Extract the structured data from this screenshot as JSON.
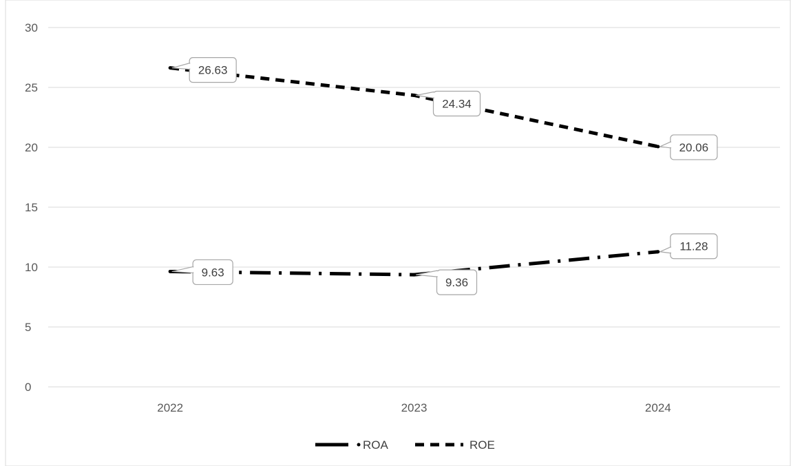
{
  "chart_data": {
    "type": "line",
    "categories": [
      "2022",
      "2023",
      "2024"
    ],
    "series": [
      {
        "name": "ROA",
        "values": [
          9.63,
          9.36,
          11.28
        ],
        "color": "#000000",
        "dash": "long-dash-dot"
      },
      {
        "name": "ROE",
        "values": [
          26.63,
          24.34,
          20.06
        ],
        "color": "#000000",
        "dash": "dash"
      }
    ],
    "data_labels": {
      "ROA": [
        "9.63",
        "9.36",
        "11.28"
      ],
      "ROE": [
        "26.63",
        "24.34",
        "20.06"
      ]
    },
    "ylim": [
      0,
      30
    ],
    "yticks": [
      "0",
      "5",
      "10",
      "15",
      "20",
      "25",
      "30"
    ],
    "grid": true,
    "legend": "bottom",
    "gridline_color": "#d9d9d9"
  }
}
